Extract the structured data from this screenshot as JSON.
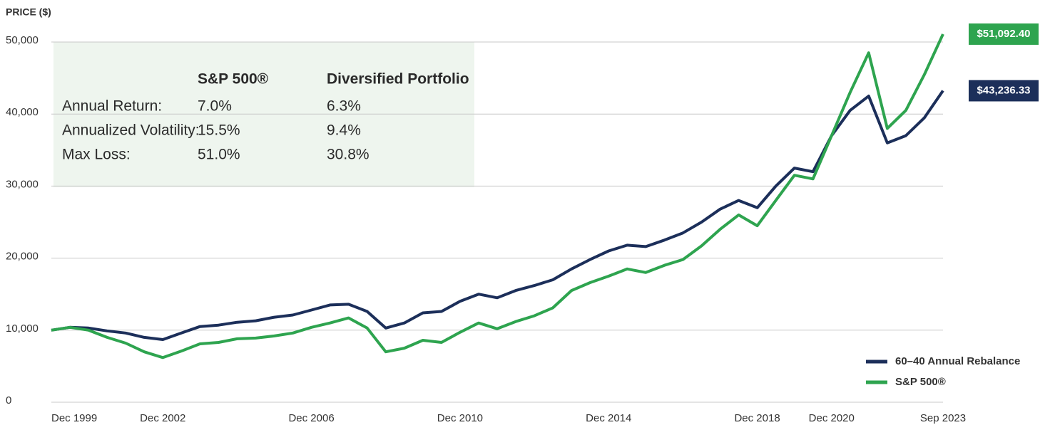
{
  "chart_data": {
    "type": "line",
    "y_label": "PRICE ($)",
    "categories": [
      "Dec 1999",
      null,
      null,
      null,
      null,
      null,
      "Dec 2002",
      null,
      null,
      null,
      null,
      null,
      null,
      null,
      "Dec 2006",
      null,
      null,
      null,
      null,
      null,
      null,
      null,
      "Dec 2010",
      null,
      null,
      null,
      null,
      null,
      null,
      null,
      "Dec 2014",
      null,
      null,
      null,
      null,
      null,
      null,
      null,
      "Dec 2018",
      null,
      null,
      null,
      "Dec 2020",
      null,
      null,
      null,
      null,
      null,
      "Sep 2023"
    ],
    "series": [
      {
        "name": "60–40 Annual Rebalance",
        "color": "#1c2f5a",
        "values": [
          10000,
          10400,
          10300,
          9900,
          9600,
          9000,
          8700,
          9600,
          10500,
          10700,
          11100,
          11300,
          11800,
          12100,
          12800,
          13500,
          13600,
          12600,
          10300,
          11000,
          12400,
          12600,
          14000,
          15000,
          14500,
          15500,
          16200,
          17000,
          18500,
          19800,
          21000,
          21800,
          21600,
          22500,
          23500,
          25000,
          26800,
          28000,
          27000,
          30000,
          32500,
          32000,
          37000,
          40500,
          42500,
          36000,
          37000,
          39500,
          43236.33
        ],
        "value_labels": [
          null,
          null,
          null,
          null,
          null,
          null,
          null,
          null,
          null,
          null,
          null,
          null,
          null,
          null,
          null,
          null,
          null,
          null,
          null,
          null,
          null,
          null,
          null,
          null,
          null,
          null,
          null,
          null,
          null,
          null,
          null,
          null,
          null,
          null,
          null,
          null,
          null,
          null,
          null,
          null,
          null,
          null,
          null,
          null,
          null,
          null,
          null,
          null,
          "$43,236.33"
        ]
      },
      {
        "name": "S&P 500®",
        "color": "#2ea44f",
        "values": [
          10000,
          10400,
          10000,
          9000,
          8200,
          7000,
          6200,
          7100,
          8100,
          8300,
          8800,
          8900,
          9200,
          9600,
          10400,
          11000,
          11700,
          10300,
          7000,
          7500,
          8600,
          8300,
          9700,
          11000,
          10200,
          11200,
          12000,
          13100,
          15500,
          16600,
          17500,
          18500,
          18000,
          19000,
          19800,
          21700,
          24000,
          26000,
          24500,
          28000,
          31500,
          31000,
          37000,
          43000,
          48500,
          38000,
          40500,
          45500,
          51092.4
        ],
        "value_labels": [
          null,
          null,
          null,
          null,
          null,
          null,
          null,
          null,
          null,
          null,
          null,
          null,
          null,
          null,
          null,
          null,
          null,
          null,
          null,
          null,
          null,
          null,
          null,
          null,
          null,
          null,
          null,
          null,
          null,
          null,
          null,
          null,
          null,
          null,
          null,
          null,
          null,
          null,
          null,
          null,
          null,
          null,
          null,
          null,
          null,
          null,
          null,
          null,
          "$51,092.40"
        ]
      }
    ],
    "ylim": [
      0,
      50000
    ],
    "yticks": [
      0,
      {
        "value": 10000,
        "label": "10,000"
      },
      {
        "value": 20000,
        "label": "20,000"
      },
      {
        "value": 30000,
        "label": "30,000"
      },
      {
        "value": 40000,
        "label": "40,000"
      },
      {
        "value": 50000,
        "label": "50,000"
      }
    ],
    "grid": true,
    "legend": "lower right",
    "table": {
      "columns": [
        "S&P 500®",
        "Diversified Portfolio"
      ],
      "rows": [
        {
          "label": "Annual Return:",
          "values": [
            "7.0%",
            "6.3%"
          ]
        },
        {
          "label": "Annualized Volatility:",
          "values": [
            "15.5%",
            "9.4%"
          ]
        },
        {
          "label": "Max Loss:",
          "values": [
            "51.0%",
            "30.8%"
          ]
        }
      ]
    }
  }
}
